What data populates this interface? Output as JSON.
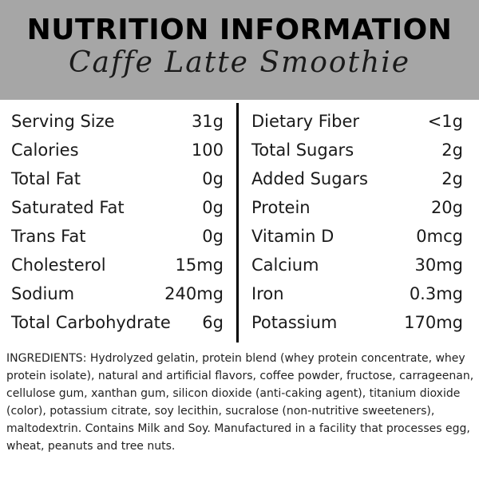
{
  "header": {
    "title": "NUTRITION INFORMATION",
    "subtitle": "Caffe Latte Smoothie",
    "background_color": "#a6a6a6"
  },
  "nutrition": {
    "left": [
      {
        "label": "Serving Size",
        "value": "31g"
      },
      {
        "label": "Calories",
        "value": "100"
      },
      {
        "label": "Total Fat",
        "value": "0g"
      },
      {
        "label": "Saturated Fat",
        "value": "0g"
      },
      {
        "label": "Trans Fat",
        "value": "0g"
      },
      {
        "label": "Cholesterol",
        "value": "15mg"
      },
      {
        "label": "Sodium",
        "value": "240mg"
      },
      {
        "label": "Total Carbohydrate",
        "value": "6g"
      }
    ],
    "right": [
      {
        "label": "Dietary Fiber",
        "value": "<1g"
      },
      {
        "label": "Total Sugars",
        "value": "2g"
      },
      {
        "label": "Added Sugars",
        "value": "2g"
      },
      {
        "label": "Protein",
        "value": "20g"
      },
      {
        "label": "Vitamin D",
        "value": "0mcg"
      },
      {
        "label": "Calcium",
        "value": "30mg"
      },
      {
        "label": "Iron",
        "value": "0.3mg"
      },
      {
        "label": "Potassium",
        "value": "170mg"
      }
    ]
  },
  "ingredients": "INGREDIENTS: Hydrolyzed gelatin, protein blend (whey protein concentrate, whey protein isolate), natural and artificial flavors, coffee powder, fructose, carrageenan, cellulose gum, xanthan gum, silicon dioxide (anti-caking agent), titanium dioxide (color), potassium citrate, soy lecithin, sucralose (non-nutritive sweeteners), maltodextrin. Contains Milk and Soy. Manufactured in a facility that processes egg, wheat, peanuts and tree nuts."
}
